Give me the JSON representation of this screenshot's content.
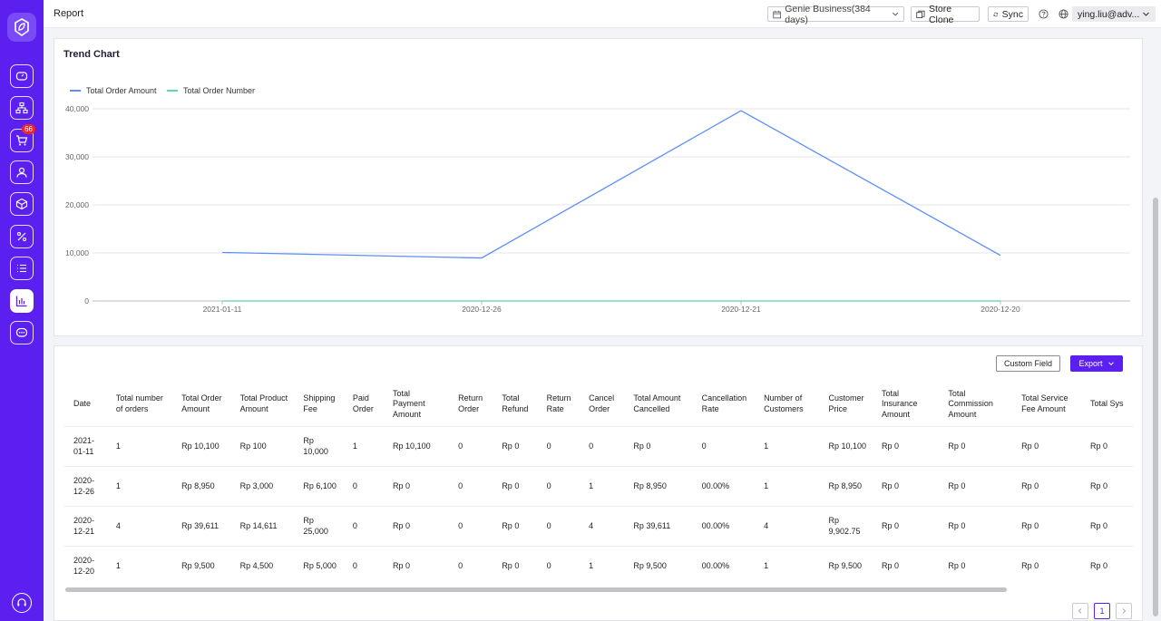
{
  "header": {
    "page_title": "Report",
    "store_selector": "Genie Business(384 days)",
    "store_clone": "Store Clone",
    "sync": "Sync",
    "user": "ying.liu@adv..."
  },
  "sidebar": {
    "cart_badge": "66",
    "items": [
      {
        "icon": "dashboard-icon"
      },
      {
        "icon": "org-chart-icon"
      },
      {
        "icon": "cart-icon"
      },
      {
        "icon": "customers-icon"
      },
      {
        "icon": "product-box-icon"
      },
      {
        "icon": "discount-icon"
      },
      {
        "icon": "list-icon"
      },
      {
        "icon": "report-chart-icon",
        "active": true
      },
      {
        "icon": "chat-icon"
      }
    ]
  },
  "colors": {
    "brand": "#5b1ff0",
    "series_amount": "#5b8ff9",
    "series_number": "#5ad8a6"
  },
  "chart_data": {
    "type": "line",
    "title": "Trend Chart",
    "categories": [
      "2021-01-11",
      "2020-12-26",
      "2020-12-21",
      "2020-12-20"
    ],
    "series": [
      {
        "name": "Total Order Amount",
        "values": [
          10100,
          8950,
          39611,
          9500
        ]
      },
      {
        "name": "Total Order Number",
        "values": [
          1,
          1,
          4,
          1
        ]
      }
    ],
    "ylim": [
      0,
      40000
    ],
    "yticks": [
      "0",
      "10,000",
      "20,000",
      "30,000",
      "40,000"
    ],
    "grid": true,
    "legend": "top-left"
  },
  "table": {
    "custom_field": "Custom Field",
    "export": "Export",
    "columns": [
      "Date",
      "Total number of orders",
      "Total Order Amount",
      "Total Product Amount",
      "Shipping Fee",
      "Paid Order",
      "Total Payment Amount",
      "Return Order",
      "Total Refund",
      "Return Rate",
      "Cancel Order",
      "Total Amount Cancelled",
      "Cancellation Rate",
      "Number of Customers",
      "Customer Price",
      "Total Insurance Amount",
      "Total Commission Amount",
      "Total Service Fee Amount",
      "Total Sys"
    ],
    "rows": [
      [
        "2021-01-11",
        "1",
        "Rp 10,100",
        "Rp 100",
        "Rp 10,000",
        "1",
        "Rp 10,100",
        "0",
        "Rp 0",
        "0",
        "0",
        "Rp 0",
        "0",
        "1",
        "Rp 10,100",
        "Rp 0",
        "Rp 0",
        "Rp 0",
        "Rp 0"
      ],
      [
        "2020-12-26",
        "1",
        "Rp 8,950",
        "Rp 3,000",
        "Rp 6,100",
        "0",
        "Rp 0",
        "0",
        "Rp 0",
        "0",
        "1",
        "Rp 8,950",
        "00.00%",
        "1",
        "Rp 8,950",
        "Rp 0",
        "Rp 0",
        "Rp 0",
        "Rp 0"
      ],
      [
        "2020-12-21",
        "4",
        "Rp 39,611",
        "Rp 14,611",
        "Rp 25,000",
        "0",
        "Rp 0",
        "0",
        "Rp 0",
        "0",
        "4",
        "Rp 39,611",
        "00.00%",
        "4",
        "Rp 9,902.75",
        "Rp 0",
        "Rp 0",
        "Rp 0",
        "Rp 0"
      ],
      [
        "2020-12-20",
        "1",
        "Rp 9,500",
        "Rp 4,500",
        "Rp 5,000",
        "0",
        "Rp 0",
        "0",
        "Rp 0",
        "0",
        "1",
        "Rp 9,500",
        "00.00%",
        "1",
        "Rp 9,500",
        "Rp 0",
        "Rp 0",
        "Rp 0",
        "Rp 0"
      ]
    ]
  },
  "pagination": {
    "current": "1"
  }
}
